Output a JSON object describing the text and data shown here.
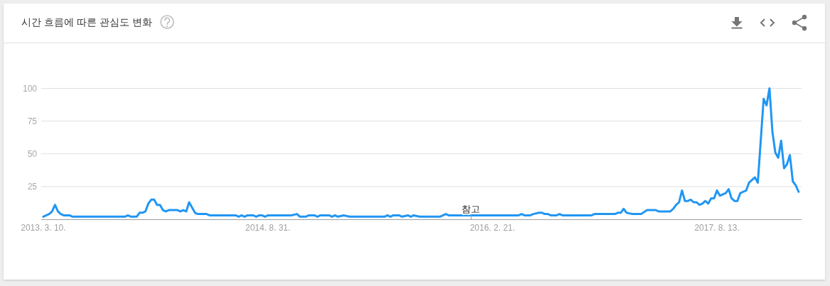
{
  "chart_data": {
    "type": "line",
    "title": "시간 흐름에 따른 관심도 변화",
    "x": [
      "2013-03-10",
      "2013-03-17",
      "2013-03-24",
      "2013-03-31",
      "2013-04-07",
      "2013-04-14",
      "2013-04-21",
      "2013-04-28",
      "2013-05-12",
      "2013-05-19",
      "2013-09-22",
      "2013-09-29",
      "2013-10-06",
      "2013-10-20",
      "2013-10-27",
      "2013-11-03",
      "2013-11-10",
      "2013-11-17",
      "2013-11-24",
      "2013-12-01",
      "2013-12-08",
      "2013-12-15",
      "2013-12-22",
      "2013-12-29",
      "2014-01-05",
      "2014-01-26",
      "2014-02-02",
      "2014-02-09",
      "2014-02-16",
      "2014-02-23",
      "2014-03-02",
      "2014-03-09",
      "2014-03-16",
      "2014-04-06",
      "2014-04-13",
      "2014-06-15",
      "2014-06-22",
      "2014-06-29",
      "2014-07-06",
      "2014-07-13",
      "2014-07-27",
      "2014-08-03",
      "2014-08-10",
      "2014-08-17",
      "2014-08-24",
      "2014-08-31",
      "2014-10-26",
      "2014-11-09",
      "2014-11-16",
      "2014-11-30",
      "2014-12-07",
      "2014-12-21",
      "2014-12-28",
      "2015-01-04",
      "2015-01-25",
      "2015-02-01",
      "2015-02-08",
      "2015-02-15",
      "2015-03-01",
      "2015-03-15",
      "2015-06-07",
      "2015-06-14",
      "2015-06-21",
      "2015-06-28",
      "2015-07-12",
      "2015-07-19",
      "2015-08-02",
      "2015-08-09",
      "2015-08-16",
      "2015-08-30",
      "2015-10-18",
      "2015-11-01",
      "2015-11-08",
      "2015-12-06",
      "2016-04-24",
      "2016-05-01",
      "2016-05-08",
      "2016-05-22",
      "2016-05-29",
      "2016-06-12",
      "2016-06-19",
      "2016-06-26",
      "2016-07-03",
      "2016-07-10",
      "2016-07-24",
      "2016-07-31",
      "2016-08-07",
      "2016-10-16",
      "2016-10-23",
      "2016-12-11",
      "2016-12-18",
      "2016-12-25",
      "2017-01-01",
      "2017-01-08",
      "2017-01-22",
      "2017-02-12",
      "2017-02-26",
      "2017-03-19",
      "2017-03-26",
      "2017-04-23",
      "2017-04-30",
      "2017-05-07",
      "2017-05-14",
      "2017-05-21",
      "2017-05-28",
      "2017-06-04",
      "2017-06-11",
      "2017-06-18",
      "2017-06-25",
      "2017-07-02",
      "2017-07-09",
      "2017-07-16",
      "2017-07-23",
      "2017-07-30",
      "2017-08-06",
      "2017-08-13",
      "2017-08-20",
      "2017-08-27",
      "2017-09-03",
      "2017-09-10",
      "2017-09-17",
      "2017-09-24",
      "2017-10-01",
      "2017-10-08",
      "2017-10-15",
      "2017-10-22",
      "2017-10-29",
      "2017-11-05",
      "2017-11-12",
      "2017-11-19",
      "2017-11-26",
      "2017-12-03",
      "2017-12-10",
      "2017-12-17",
      "2017-12-24",
      "2017-12-31",
      "2018-01-07",
      "2018-01-14",
      "2018-01-21",
      "2018-01-28",
      "2018-02-04",
      "2018-02-11",
      "2018-02-18",
      "2018-02-25"
    ],
    "values": [
      2,
      3,
      4,
      6,
      11,
      6,
      4,
      3,
      3,
      2,
      2,
      3,
      2,
      2,
      5,
      5,
      6,
      12,
      15,
      15,
      11,
      11,
      7,
      6,
      7,
      7,
      6,
      7,
      6,
      13,
      9,
      5,
      4,
      4,
      3,
      3,
      2,
      3,
      2,
      3,
      3,
      2,
      3,
      3,
      2,
      3,
      3,
      4,
      2,
      2,
      3,
      3,
      2,
      3,
      3,
      2,
      3,
      2,
      3,
      2,
      2,
      3,
      2,
      3,
      3,
      2,
      3,
      2,
      3,
      2,
      2,
      4,
      3,
      3,
      3,
      4,
      3,
      3,
      4,
      5,
      5,
      4,
      4,
      3,
      3,
      4,
      3,
      3,
      4,
      4,
      5,
      5,
      8,
      5,
      4,
      4,
      7,
      7,
      6,
      6,
      8,
      11,
      13,
      22,
      14,
      14,
      15,
      13,
      13,
      11,
      12,
      14,
      12,
      16,
      16,
      22,
      18,
      19,
      20,
      23,
      16,
      14,
      14,
      20,
      21,
      22,
      28,
      30,
      32,
      28,
      60,
      92,
      87,
      100,
      67,
      51,
      47,
      60,
      39,
      42,
      49,
      29,
      26,
      21
    ],
    "color": "#2196f3",
    "xlim": [
      "2013-03-05",
      "2018-03-04"
    ],
    "xticks": [
      {
        "value": "2013-03-10",
        "label": "2013. 3. 10."
      },
      {
        "value": "2014-08-31",
        "label": "2014. 8. 31."
      },
      {
        "value": "2016-02-21",
        "label": "2016. 2. 21."
      },
      {
        "value": "2017-08-13",
        "label": "2017. 8. 13."
      }
    ],
    "ylim": [
      0,
      100
    ],
    "yticks": [
      25,
      50,
      75,
      100
    ],
    "grid": "y",
    "annotations": [
      {
        "text": "참고",
        "x": "2016-01-01",
        "y": 0
      }
    ]
  }
}
